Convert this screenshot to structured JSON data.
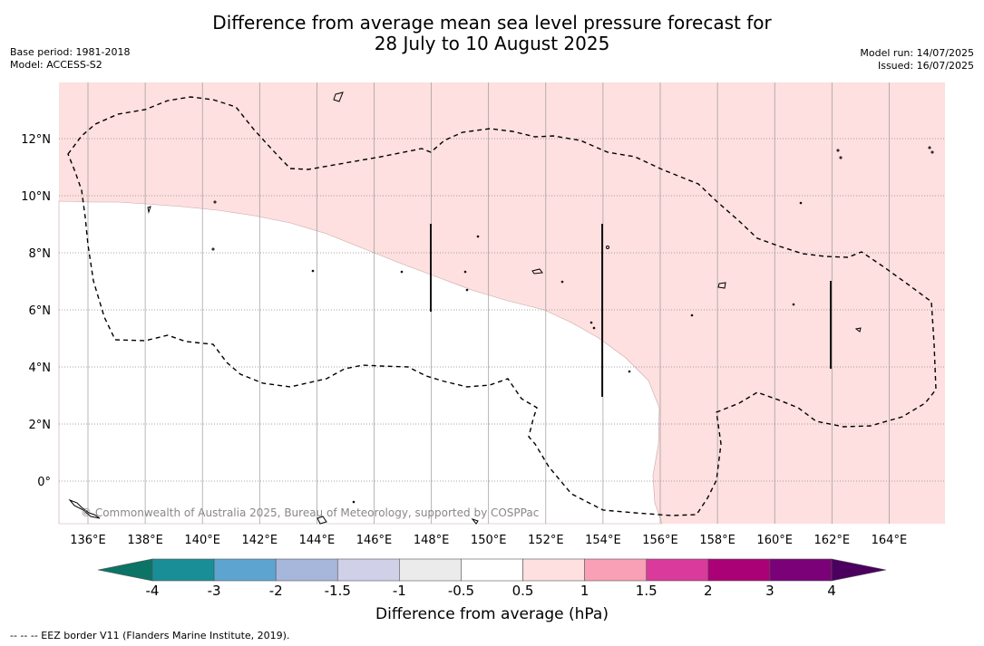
{
  "title_line1": "Difference from average mean sea level pressure forecast for",
  "title_line2": "28 July to 10 August 2025",
  "meta_left": {
    "base_period": "Base period: 1981-2018",
    "model": "Model: ACCESS-S2"
  },
  "meta_right": {
    "model_run": "Model run: 14/07/2025",
    "issued": "Issued: 16/07/2025"
  },
  "map": {
    "lon_labels": [
      "136°E",
      "138°E",
      "140°E",
      "142°E",
      "144°E",
      "146°E",
      "148°E",
      "150°E",
      "152°E",
      "154°E",
      "156°E",
      "158°E",
      "160°E",
      "162°E",
      "164°E"
    ],
    "lat_labels": [
      "12°N",
      "10°N",
      "8°N",
      "6°N",
      "4°N",
      "2°N",
      "0°"
    ],
    "copyright": "© Commonwealth of Australia 2025, Bureau of Meteorology, supported by COSPPac",
    "anomaly_fill_color": "#fde0df",
    "neutral_fill_color": "#ffffff"
  },
  "colorbar": {
    "title": "Difference from average (hPa)",
    "ticks": [
      "-4",
      "-3",
      "-2",
      "-1.5",
      "-1",
      "-0.5",
      "0.5",
      "1",
      "1.5",
      "2",
      "3",
      "4"
    ],
    "colors": [
      "#1a8e97",
      "#5da5d0",
      "#a6b7db",
      "#d0d0e8",
      "#ebebeb",
      "#ffffff",
      "#fde0df",
      "#f99fb6",
      "#da3a9b",
      "#ab0177",
      "#7a0177"
    ],
    "low_extend_color": "#0b7466",
    "high_extend_color": "#4b0060"
  },
  "footnote": "--  --  -- EEZ border V11 (Flanders Marine Institute, 2019)."
}
